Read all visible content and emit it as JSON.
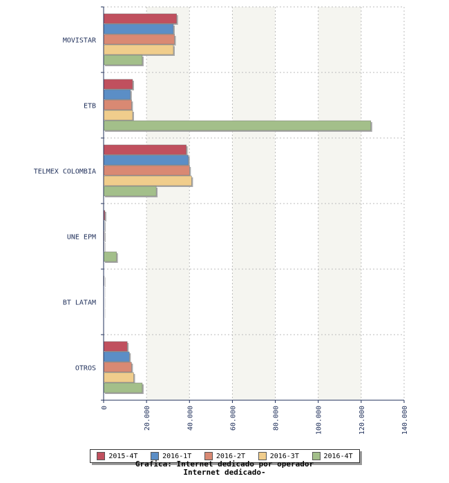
{
  "chart_data": {
    "type": "bar",
    "orientation": "horizontal",
    "title": "Grafica: Internet dedicado por operador",
    "subtitle": "Internet dedicado-",
    "categories": [
      "MOVISTAR",
      "ETB",
      "TELMEX COLOMBIA",
      "UNE EPM",
      "BT LATAM",
      "OTROS"
    ],
    "series": [
      {
        "name": "2015-4T",
        "color": "#c0505e",
        "values": [
          34000,
          13500,
          38500,
          600,
          200,
          11000
        ]
      },
      {
        "name": "2016-1T",
        "color": "#5b8ec6",
        "values": [
          32500,
          12500,
          39500,
          300,
          100,
          12000
        ]
      },
      {
        "name": "2016-2T",
        "color": "#d98973",
        "values": [
          33000,
          13000,
          40000,
          300,
          100,
          13000
        ]
      },
      {
        "name": "2016-3T",
        "color": "#f0cd8c",
        "values": [
          32500,
          13500,
          41000,
          200,
          100,
          14000
        ]
      },
      {
        "name": "2016-4T",
        "color": "#a3bf8a",
        "values": [
          18000,
          124500,
          24500,
          6000,
          0,
          18000
        ]
      }
    ],
    "xlim": [
      0,
      140000
    ],
    "xticks": [
      "0",
      "20.000",
      "40.000",
      "60.000",
      "80.000",
      "100.000",
      "120.000",
      "140.000"
    ],
    "grid": true,
    "legend_position": "bottom"
  }
}
